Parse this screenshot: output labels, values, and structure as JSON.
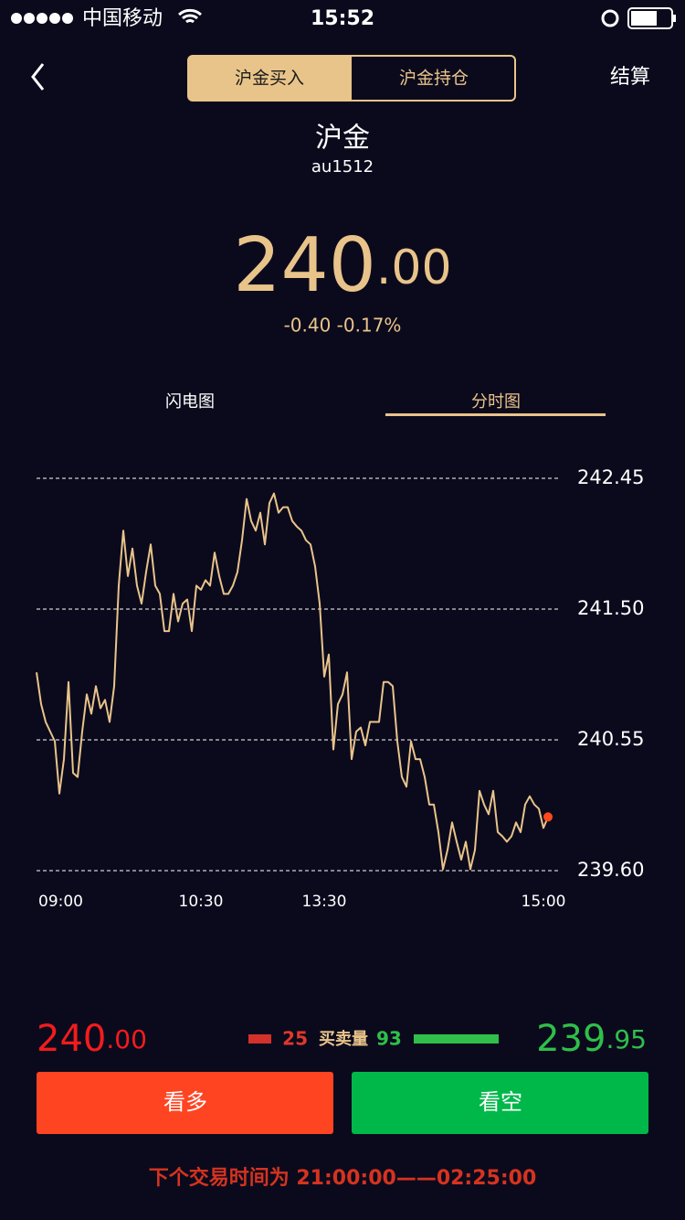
{
  "status_bar": {
    "carrier": "中国移动",
    "time": "15:52"
  },
  "nav": {
    "tabs": [
      "沪金买入",
      "沪金持仓"
    ],
    "action": "结算"
  },
  "header": {
    "name": "沪金",
    "code": "au1512",
    "price_int": "240",
    "price_dec": ".00",
    "change": "-0.40 -0.17%"
  },
  "chart_tabs": [
    "闪电图",
    "分时图"
  ],
  "chart_data": {
    "type": "line",
    "series": [
      {
        "color": "#e9c48a",
        "values": [
          241.04,
          240.81,
          240.68,
          240.61,
          240.54,
          240.16,
          240.41,
          240.97,
          240.31,
          240.28,
          240.61,
          240.88,
          240.74,
          240.94,
          240.78,
          240.84,
          240.68,
          240.94,
          241.67,
          242.07,
          241.74,
          241.94,
          241.67,
          241.54,
          241.77,
          241.97,
          241.67,
          241.61,
          241.34,
          241.34,
          241.61,
          241.41,
          241.54,
          241.57,
          241.34,
          241.67,
          241.64,
          241.71,
          241.67,
          241.91,
          241.74,
          241.61,
          241.61,
          241.67,
          241.77,
          242.0,
          242.3,
          242.14,
          242.07,
          242.2,
          241.97,
          242.27,
          242.34,
          242.2,
          242.24,
          242.24,
          242.14,
          242.1,
          242.07,
          242.0,
          241.97,
          241.81,
          241.54,
          241.01,
          241.17,
          240.48,
          240.81,
          240.88,
          241.04,
          240.41,
          240.61,
          240.64,
          240.51,
          240.68,
          240.68,
          240.68,
          240.97,
          240.97,
          240.94,
          240.54,
          240.28,
          240.21,
          240.54,
          240.41,
          240.41,
          240.28,
          240.08,
          240.08,
          239.88,
          239.61,
          239.75,
          239.95,
          239.81,
          239.68,
          239.81,
          239.61,
          239.75,
          240.18,
          240.08,
          240.01,
          240.18,
          239.88,
          239.85,
          239.81,
          239.85,
          239.95,
          239.88,
          240.08,
          240.14,
          240.08,
          240.05,
          239.91,
          239.99
        ]
      }
    ],
    "last_point_color": "#ff4a1c",
    "xlim": [
      0,
      112
    ],
    "xticks": [
      {
        "value": 0,
        "label": "09:00"
      },
      {
        "value": 36,
        "label": "10:30"
      },
      {
        "value": 63,
        "label": "13:30"
      },
      {
        "value": 111,
        "label": "15:00"
      }
    ],
    "ylim": [
      239.6,
      242.45
    ],
    "yticks": [
      242.45,
      {
        "value": 241.5,
        "label": "241.50"
      },
      240.55,
      {
        "value": 239.6,
        "label": "239.60"
      }
    ],
    "grid": true
  },
  "trade": {
    "buy_price_int": "240",
    "buy_price_dec": ".00",
    "buy_volume": 25,
    "volume_label": "买卖量",
    "sell_volume": 93,
    "sell_price_int": "239",
    "sell_price_dec": ".95",
    "buy_button": "看多",
    "sell_button": "看空",
    "notice": "下个交易时间为 21:00:00——02:25:00"
  }
}
